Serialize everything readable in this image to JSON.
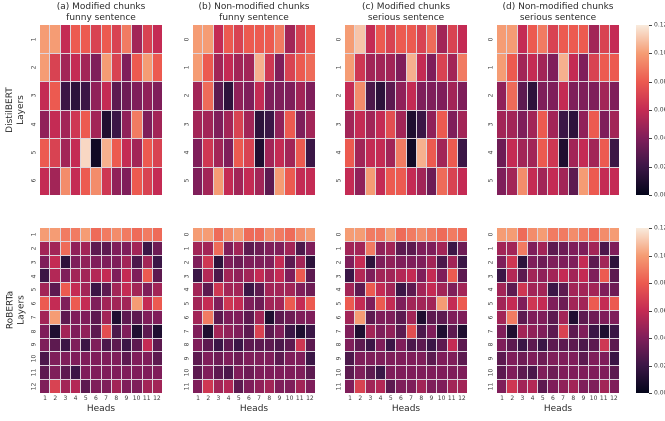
{
  "left_labels": [
    {
      "line1": "DistilBERT",
      "line2": "Layers"
    },
    {
      "line1": "RoBERTa",
      "line2": "Layers"
    }
  ],
  "x_axis": {
    "label": "Heads",
    "tick_labels": [
      "1",
      "2",
      "3",
      "4",
      "5",
      "6",
      "7",
      "8",
      "9",
      "10",
      "11",
      "12"
    ]
  },
  "colorbar": {
    "vmin": 0.0,
    "vmax": 0.12,
    "colormap": "rocket",
    "tick_labels": [
      "0.12",
      "0.10",
      "0.08",
      "0.06",
      "0.04",
      "0.02",
      "0.00"
    ],
    "gradient_anchors": [
      {
        "value": 0.0,
        "color": "#03051A"
      },
      {
        "value": 0.02,
        "color": "#3B1646"
      },
      {
        "value": 0.04,
        "color": "#7F1E5A"
      },
      {
        "value": 0.06,
        "color": "#C42B54"
      },
      {
        "value": 0.08,
        "color": "#EC5A50"
      },
      {
        "value": 0.1,
        "color": "#F59C74"
      },
      {
        "value": 0.12,
        "color": "#F9EBDD"
      }
    ]
  },
  "chart_data": [
    {
      "type": "heatmap",
      "group": "DistilBERT",
      "title_line1": "(a) Modified chunks",
      "title_line2": "funny sentence",
      "vmin": 0.0,
      "vmax": 0.12,
      "row_labels": [
        "1",
        "2",
        "3",
        "4",
        "5",
        "6"
      ],
      "values": [
        [
          0.1,
          0.1,
          0.06,
          0.08,
          0.08,
          0.07,
          0.08,
          0.07,
          0.09,
          0.05,
          0.07,
          0.06
        ],
        [
          0.1,
          0.07,
          0.05,
          0.06,
          0.05,
          0.04,
          0.1,
          0.07,
          0.04,
          0.08,
          0.1,
          0.08
        ],
        [
          0.06,
          0.08,
          0.02,
          0.015,
          0.02,
          0.045,
          0.06,
          0.03,
          0.035,
          0.04,
          0.045,
          0.04
        ],
        [
          0.045,
          0.06,
          0.05,
          0.065,
          0.08,
          0.05,
          0.01,
          0.02,
          0.045,
          0.09,
          0.04,
          0.05
        ],
        [
          0.08,
          0.07,
          0.05,
          0.06,
          0.115,
          0.005,
          0.105,
          0.08,
          0.06,
          0.05,
          0.08,
          0.07
        ],
        [
          0.06,
          0.05,
          0.095,
          0.06,
          0.08,
          0.095,
          0.065,
          0.045,
          0.04,
          0.08,
          0.07,
          0.06
        ]
      ]
    },
    {
      "type": "heatmap",
      "group": "DistilBERT",
      "title_line1": "(b) Non-modified chunks",
      "title_line2": "funny sentence",
      "vmin": 0.0,
      "vmax": 0.12,
      "row_labels": [
        "0",
        "1",
        "2",
        "3",
        "4",
        "5"
      ],
      "values": [
        [
          0.1,
          0.1,
          0.06,
          0.08,
          0.07,
          0.08,
          0.08,
          0.08,
          0.09,
          0.05,
          0.07,
          0.08
        ],
        [
          0.1,
          0.08,
          0.05,
          0.06,
          0.05,
          0.05,
          0.105,
          0.065,
          0.04,
          0.07,
          0.08,
          0.085
        ],
        [
          0.05,
          0.085,
          0.03,
          0.015,
          0.045,
          0.04,
          0.06,
          0.04,
          0.04,
          0.04,
          0.05,
          0.04
        ],
        [
          0.05,
          0.05,
          0.04,
          0.05,
          0.07,
          0.05,
          0.015,
          0.02,
          0.045,
          0.08,
          0.04,
          0.05
        ],
        [
          0.04,
          0.065,
          0.05,
          0.04,
          0.08,
          0.07,
          0.01,
          0.05,
          0.06,
          0.05,
          0.08,
          0.02
        ],
        [
          0.04,
          0.05,
          0.1,
          0.06,
          0.05,
          0.06,
          0.05,
          0.03,
          0.1,
          0.08,
          0.06,
          0.06
        ]
      ]
    },
    {
      "type": "heatmap",
      "group": "DistilBERT",
      "title_line1": "(c) Modified chunks",
      "title_line2": "serious sentence",
      "vmin": 0.0,
      "vmax": 0.12,
      "row_labels": [
        "0",
        "1",
        "2",
        "3",
        "4",
        "5"
      ],
      "values": [
        [
          0.1,
          0.11,
          0.06,
          0.08,
          0.07,
          0.08,
          0.08,
          0.07,
          0.085,
          0.05,
          0.07,
          0.06
        ],
        [
          0.1,
          0.065,
          0.05,
          0.05,
          0.05,
          0.04,
          0.105,
          0.06,
          0.04,
          0.07,
          0.05,
          0.09
        ],
        [
          0.06,
          0.095,
          0.025,
          0.015,
          0.03,
          0.045,
          0.06,
          0.04,
          0.04,
          0.04,
          0.05,
          0.04
        ],
        [
          0.05,
          0.06,
          0.05,
          0.06,
          0.075,
          0.05,
          0.01,
          0.02,
          0.045,
          0.08,
          0.04,
          0.05
        ],
        [
          0.08,
          0.05,
          0.06,
          0.06,
          0.05,
          0.09,
          0.005,
          0.105,
          0.08,
          0.05,
          0.08,
          0.02
        ],
        [
          0.06,
          0.045,
          0.1,
          0.06,
          0.08,
          0.08,
          0.06,
          0.05,
          0.035,
          0.085,
          0.07,
          0.06
        ]
      ]
    },
    {
      "type": "heatmap",
      "group": "DistilBERT",
      "title_line1": "(d) Non-modified chunks",
      "title_line2": "serious sentence",
      "vmin": 0.0,
      "vmax": 0.12,
      "row_labels": [
        "0",
        "1",
        "2",
        "3",
        "4",
        "5"
      ],
      "values": [
        [
          0.1,
          0.1,
          0.06,
          0.08,
          0.09,
          0.07,
          0.08,
          0.08,
          0.08,
          0.05,
          0.07,
          0.06
        ],
        [
          0.1,
          0.08,
          0.05,
          0.06,
          0.05,
          0.04,
          0.105,
          0.06,
          0.04,
          0.07,
          0.08,
          0.08
        ],
        [
          0.045,
          0.085,
          0.03,
          0.015,
          0.04,
          0.04,
          0.06,
          0.04,
          0.04,
          0.04,
          0.05,
          0.04
        ],
        [
          0.05,
          0.05,
          0.04,
          0.05,
          0.08,
          0.05,
          0.02,
          0.015,
          0.045,
          0.08,
          0.04,
          0.05
        ],
        [
          0.035,
          0.06,
          0.05,
          0.05,
          0.08,
          0.065,
          0.01,
          0.05,
          0.06,
          0.05,
          0.08,
          0.02
        ],
        [
          0.04,
          0.05,
          0.095,
          0.06,
          0.05,
          0.06,
          0.05,
          0.03,
          0.1,
          0.08,
          0.06,
          0.06
        ]
      ]
    },
    {
      "type": "heatmap",
      "group": "RoBERTa",
      "title_line1": "",
      "title_line2": "",
      "vmin": 0.0,
      "vmax": 0.12,
      "row_labels": [
        "1",
        "2",
        "3",
        "4",
        "5",
        "6",
        "7",
        "8",
        "9",
        "10",
        "11",
        "12"
      ],
      "values": [
        [
          0.1,
          0.1,
          0.09,
          0.09,
          0.1,
          0.085,
          0.09,
          0.095,
          0.09,
          0.085,
          0.09,
          0.085
        ],
        [
          0.05,
          0.05,
          0.085,
          0.045,
          0.05,
          0.03,
          0.03,
          0.04,
          0.04,
          0.05,
          0.02,
          0.035
        ],
        [
          0.04,
          0.06,
          0.015,
          0.04,
          0.045,
          0.04,
          0.04,
          0.04,
          0.05,
          0.025,
          0.05,
          0.02
        ],
        [
          0.02,
          0.055,
          0.04,
          0.05,
          0.05,
          0.055,
          0.06,
          0.04,
          0.06,
          0.04,
          0.08,
          0.03
        ],
        [
          0.05,
          0.03,
          0.08,
          0.06,
          0.05,
          0.02,
          0.03,
          0.05,
          0.06,
          0.05,
          0.04,
          0.05
        ],
        [
          0.08,
          0.06,
          0.04,
          0.08,
          0.06,
          0.04,
          0.05,
          0.05,
          0.05,
          0.1,
          0.06,
          0.08
        ],
        [
          0.05,
          0.1,
          0.03,
          0.04,
          0.04,
          0.03,
          0.05,
          0.01,
          0.03,
          0.03,
          0.04,
          0.04
        ],
        [
          0.04,
          0.01,
          0.05,
          0.04,
          0.045,
          0.03,
          0.075,
          0.025,
          0.04,
          0.01,
          0.03,
          0.01
        ],
        [
          0.04,
          0.03,
          0.02,
          0.04,
          0.02,
          0.04,
          0.025,
          0.03,
          0.02,
          0.03,
          0.06,
          0.03
        ],
        [
          0.025,
          0.04,
          0.04,
          0.04,
          0.04,
          0.04,
          0.04,
          0.04,
          0.03,
          0.04,
          0.04,
          0.03
        ],
        [
          0.03,
          0.04,
          0.03,
          0.02,
          0.04,
          0.04,
          0.04,
          0.04,
          0.04,
          0.04,
          0.04,
          0.04
        ],
        [
          0.04,
          0.07,
          0.05,
          0.055,
          0.03,
          0.04,
          0.04,
          0.05,
          0.04,
          0.04,
          0.05,
          0.05
        ]
      ]
    },
    {
      "type": "heatmap",
      "group": "RoBERTa",
      "title_line1": "",
      "title_line2": "",
      "vmin": 0.0,
      "vmax": 0.12,
      "row_labels": [
        "0",
        "1",
        "2",
        "3",
        "4",
        "5",
        "6",
        "7",
        "8",
        "9",
        "10",
        "11"
      ],
      "values": [
        [
          0.1,
          0.1,
          0.085,
          0.095,
          0.1,
          0.085,
          0.085,
          0.095,
          0.09,
          0.085,
          0.095,
          0.1
        ],
        [
          0.05,
          0.05,
          0.085,
          0.04,
          0.05,
          0.03,
          0.035,
          0.04,
          0.04,
          0.05,
          0.025,
          0.04
        ],
        [
          0.04,
          0.065,
          0.015,
          0.04,
          0.035,
          0.04,
          0.04,
          0.04,
          0.06,
          0.03,
          0.05,
          0.015
        ],
        [
          0.02,
          0.055,
          0.025,
          0.05,
          0.045,
          0.05,
          0.06,
          0.05,
          0.06,
          0.04,
          0.08,
          0.03
        ],
        [
          0.05,
          0.03,
          0.065,
          0.05,
          0.05,
          0.02,
          0.03,
          0.05,
          0.05,
          0.05,
          0.04,
          0.035
        ],
        [
          0.05,
          0.06,
          0.04,
          0.065,
          0.06,
          0.04,
          0.035,
          0.05,
          0.05,
          0.08,
          0.06,
          0.08
        ],
        [
          0.05,
          0.09,
          0.03,
          0.04,
          0.04,
          0.03,
          0.05,
          0.01,
          0.03,
          0.035,
          0.04,
          0.04
        ],
        [
          0.04,
          0.01,
          0.05,
          0.045,
          0.04,
          0.03,
          0.07,
          0.03,
          0.04,
          0.02,
          0.01,
          0.02
        ],
        [
          0.04,
          0.03,
          0.02,
          0.03,
          0.02,
          0.03,
          0.03,
          0.03,
          0.025,
          0.03,
          0.065,
          0.03
        ],
        [
          0.03,
          0.04,
          0.035,
          0.04,
          0.035,
          0.04,
          0.04,
          0.04,
          0.03,
          0.04,
          0.04,
          0.02
        ],
        [
          0.03,
          0.04,
          0.03,
          0.025,
          0.04,
          0.035,
          0.04,
          0.04,
          0.04,
          0.04,
          0.04,
          0.03
        ],
        [
          0.04,
          0.065,
          0.05,
          0.055,
          0.03,
          0.04,
          0.045,
          0.05,
          0.04,
          0.04,
          0.05,
          0.04
        ]
      ]
    },
    {
      "type": "heatmap",
      "group": "RoBERTa",
      "title_line1": "",
      "title_line2": "",
      "vmin": 0.0,
      "vmax": 0.12,
      "row_labels": [
        "0",
        "1",
        "2",
        "3",
        "4",
        "5",
        "6",
        "7",
        "8",
        "9",
        "10",
        "11"
      ],
      "values": [
        [
          0.1,
          0.1,
          0.09,
          0.09,
          0.1,
          0.085,
          0.09,
          0.095,
          0.09,
          0.085,
          0.09,
          0.085
        ],
        [
          0.05,
          0.05,
          0.09,
          0.045,
          0.05,
          0.03,
          0.03,
          0.04,
          0.04,
          0.05,
          0.02,
          0.035
        ],
        [
          0.04,
          0.06,
          0.015,
          0.04,
          0.045,
          0.04,
          0.04,
          0.04,
          0.05,
          0.025,
          0.05,
          0.02
        ],
        [
          0.02,
          0.055,
          0.04,
          0.05,
          0.05,
          0.055,
          0.06,
          0.04,
          0.06,
          0.04,
          0.08,
          0.03
        ],
        [
          0.05,
          0.03,
          0.08,
          0.06,
          0.05,
          0.02,
          0.03,
          0.05,
          0.06,
          0.05,
          0.04,
          0.05
        ],
        [
          0.08,
          0.06,
          0.04,
          0.08,
          0.06,
          0.04,
          0.05,
          0.05,
          0.05,
          0.1,
          0.06,
          0.08
        ],
        [
          0.05,
          0.1,
          0.03,
          0.04,
          0.04,
          0.03,
          0.05,
          0.01,
          0.03,
          0.03,
          0.04,
          0.04
        ],
        [
          0.04,
          0.01,
          0.05,
          0.04,
          0.045,
          0.03,
          0.075,
          0.025,
          0.04,
          0.01,
          0.03,
          0.01
        ],
        [
          0.04,
          0.03,
          0.02,
          0.04,
          0.02,
          0.04,
          0.025,
          0.03,
          0.02,
          0.03,
          0.06,
          0.03
        ],
        [
          0.025,
          0.04,
          0.04,
          0.04,
          0.04,
          0.04,
          0.04,
          0.04,
          0.03,
          0.04,
          0.04,
          0.03
        ],
        [
          0.03,
          0.04,
          0.03,
          0.02,
          0.04,
          0.04,
          0.04,
          0.04,
          0.04,
          0.04,
          0.04,
          0.04
        ],
        [
          0.04,
          0.07,
          0.05,
          0.055,
          0.03,
          0.04,
          0.04,
          0.05,
          0.04,
          0.04,
          0.05,
          0.05
        ]
      ]
    },
    {
      "type": "heatmap",
      "group": "RoBERTa",
      "title_line1": "",
      "title_line2": "",
      "vmin": 0.0,
      "vmax": 0.12,
      "row_labels": [
        "0",
        "1",
        "2",
        "3",
        "4",
        "5",
        "6",
        "7",
        "8",
        "9",
        "10",
        "11"
      ],
      "values": [
        [
          0.1,
          0.1,
          0.085,
          0.095,
          0.1,
          0.09,
          0.09,
          0.095,
          0.09,
          0.085,
          0.095,
          0.1
        ],
        [
          0.05,
          0.05,
          0.09,
          0.04,
          0.05,
          0.03,
          0.035,
          0.04,
          0.04,
          0.05,
          0.025,
          0.04
        ],
        [
          0.04,
          0.065,
          0.015,
          0.04,
          0.035,
          0.04,
          0.04,
          0.04,
          0.06,
          0.03,
          0.05,
          0.015
        ],
        [
          0.02,
          0.055,
          0.03,
          0.05,
          0.045,
          0.05,
          0.06,
          0.05,
          0.06,
          0.04,
          0.08,
          0.03
        ],
        [
          0.05,
          0.03,
          0.065,
          0.05,
          0.05,
          0.02,
          0.03,
          0.05,
          0.05,
          0.05,
          0.04,
          0.035
        ],
        [
          0.05,
          0.06,
          0.04,
          0.065,
          0.06,
          0.04,
          0.035,
          0.05,
          0.05,
          0.08,
          0.06,
          0.08
        ],
        [
          0.05,
          0.09,
          0.03,
          0.04,
          0.04,
          0.03,
          0.05,
          0.01,
          0.03,
          0.035,
          0.04,
          0.04
        ],
        [
          0.04,
          0.01,
          0.05,
          0.045,
          0.04,
          0.03,
          0.07,
          0.03,
          0.04,
          0.02,
          0.01,
          0.02
        ],
        [
          0.04,
          0.03,
          0.02,
          0.03,
          0.02,
          0.03,
          0.03,
          0.03,
          0.025,
          0.03,
          0.065,
          0.03
        ],
        [
          0.03,
          0.04,
          0.035,
          0.04,
          0.035,
          0.04,
          0.04,
          0.04,
          0.03,
          0.04,
          0.04,
          0.02
        ],
        [
          0.03,
          0.04,
          0.03,
          0.025,
          0.04,
          0.035,
          0.04,
          0.04,
          0.04,
          0.04,
          0.04,
          0.03
        ],
        [
          0.04,
          0.065,
          0.05,
          0.055,
          0.03,
          0.04,
          0.045,
          0.05,
          0.04,
          0.04,
          0.05,
          0.04
        ]
      ]
    }
  ]
}
